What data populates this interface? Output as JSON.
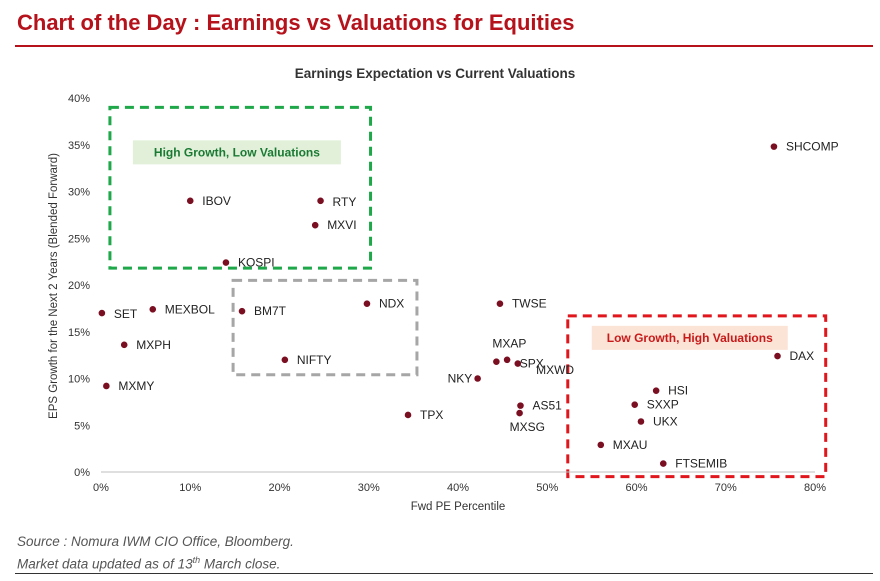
{
  "header": {
    "title": "Chart of the Day : Earnings vs Valuations for Equities"
  },
  "footer": {
    "source_line": "Source : Nomura IWM CIO Office, Bloomberg.",
    "update_prefix": "Market data updated as of 13",
    "update_sup": "th",
    "update_suffix": " March close."
  },
  "chart_data": {
    "type": "scatter",
    "title": "Earnings Expectation vs Current Valuations",
    "xlabel": "Fwd PE Percentile",
    "ylabel": "EPS Growth for the Next 2 Years (Blended Forward)",
    "xlim": [
      0,
      80
    ],
    "ylim": [
      0,
      40
    ],
    "xticks": [
      "0%",
      "10%",
      "20%",
      "30%",
      "40%",
      "50%",
      "60%",
      "70%",
      "80%"
    ],
    "yticks": [
      "0%",
      "5%",
      "10%",
      "15%",
      "20%",
      "25%",
      "30%",
      "35%",
      "40%"
    ],
    "grid": false,
    "marker_color": "#7a0f22",
    "points": [
      {
        "label": "SHCOMP",
        "x": 75.4,
        "y": 34.8
      },
      {
        "label": "IBOV",
        "x": 10.0,
        "y": 29.0
      },
      {
        "label": "RTY",
        "x": 24.6,
        "y": 29.0
      },
      {
        "label": "MXVI",
        "x": 24.0,
        "y": 26.4
      },
      {
        "label": "KOSPI",
        "x": 14.0,
        "y": 22.4
      },
      {
        "label": "NDX",
        "x": 29.8,
        "y": 18.0
      },
      {
        "label": "TWSE",
        "x": 44.7,
        "y": 18.0
      },
      {
        "label": "SET",
        "x": 0.1,
        "y": 17.0
      },
      {
        "label": "MEXBOL",
        "x": 5.8,
        "y": 17.4
      },
      {
        "label": "BM7T",
        "x": 15.8,
        "y": 17.2
      },
      {
        "label": "MXPH",
        "x": 2.6,
        "y": 13.6
      },
      {
        "label": "NIFTY",
        "x": 20.6,
        "y": 12.0
      },
      {
        "label": "MXAP",
        "x": 44.3,
        "y": 11.8
      },
      {
        "label": "SPX",
        "x": 46.7,
        "y": 11.6
      },
      {
        "label": "MXWD",
        "x": 45.5,
        "y": 12.0
      },
      {
        "label": "DAX",
        "x": 75.8,
        "y": 12.4
      },
      {
        "label": "MXMY",
        "x": 0.6,
        "y": 9.2
      },
      {
        "label": "NKY",
        "x": 42.2,
        "y": 10.0
      },
      {
        "label": "HSI",
        "x": 62.2,
        "y": 8.7
      },
      {
        "label": "SXXP",
        "x": 59.8,
        "y": 7.2
      },
      {
        "label": "AS51",
        "x": 47.0,
        "y": 7.1
      },
      {
        "label": "TPX",
        "x": 34.4,
        "y": 6.1
      },
      {
        "label": "MXSG",
        "x": 46.9,
        "y": 6.3
      },
      {
        "label": "UKX",
        "x": 60.5,
        "y": 5.4
      },
      {
        "label": "MXAU",
        "x": 56.0,
        "y": 2.9
      },
      {
        "label": "FTSEMIB",
        "x": 63.0,
        "y": 0.9
      }
    ],
    "zones": [
      {
        "name": "green-zone",
        "label": "High Growth, Low Valuations",
        "x": [
          1,
          30.2
        ],
        "y": [
          21.8,
          39.0
        ],
        "color": "#1fa84a",
        "fill": "#e2f0d9"
      },
      {
        "name": "gray-zone",
        "label": "",
        "x": [
          14.8,
          35.4
        ],
        "y": [
          10.4,
          20.5
        ],
        "color": "#a6a6a6",
        "fill": ""
      },
      {
        "name": "red-zone",
        "label": "Low Growth, High Valuations",
        "x": [
          52.3,
          81.2
        ],
        "y": [
          -0.5,
          16.7
        ],
        "color": "#e0161c",
        "fill": "#fbe3d6"
      }
    ]
  }
}
